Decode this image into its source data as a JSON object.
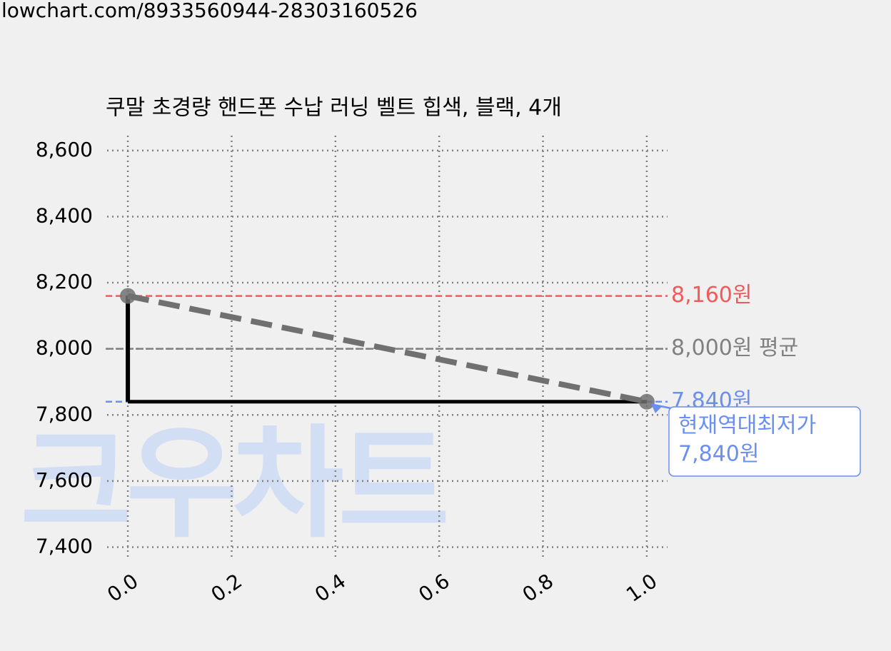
{
  "url": "lowchart.com/8933560944-28303160526",
  "watermark": "크우차트",
  "chart_data": {
    "type": "line",
    "title": "쿠말 초경량 핸드폰 수납 러닝 벨트 힙색, 블랙, 4개",
    "x": [
      0,
      1
    ],
    "series": [
      {
        "values": [
          8160,
          7840
        ],
        "color": "#000000",
        "style": "step"
      },
      {
        "values": [
          8160,
          7840
        ],
        "color": "#707070",
        "style": "dashed",
        "markers": true
      }
    ],
    "xlim": [
      -0.04,
      1.04
    ],
    "ylim": [
      7360,
      8645
    ],
    "xticks": [
      {
        "value": 0,
        "label": "0.0"
      },
      {
        "value": 0.2,
        "label": "0.2"
      },
      {
        "value": 0.4,
        "label": "0.4"
      },
      {
        "value": 0.6,
        "label": "0.6"
      },
      {
        "value": 0.8,
        "label": "0.8"
      },
      {
        "value": 1,
        "label": "1.0"
      }
    ],
    "yticks": [
      {
        "value": 7400,
        "label": "7,400"
      },
      {
        "value": 7600,
        "label": "7,600"
      },
      {
        "value": 7800,
        "label": "7,800"
      },
      {
        "value": 8000,
        "label": "8,000"
      },
      {
        "value": 8200,
        "label": "8,200"
      },
      {
        "value": 8400,
        "label": "8,400"
      },
      {
        "value": 8600,
        "label": "8,600"
      }
    ],
    "grid": true,
    "reference_lines": [
      {
        "value": 8160,
        "label": "8,160원",
        "color": "#f25a5a"
      },
      {
        "value": 8000,
        "label": "8,000원 평균",
        "color": "#808080"
      },
      {
        "value": 7840,
        "label": "7,840원",
        "color": "#6a8ff0"
      }
    ],
    "annotation": {
      "lines": [
        "현재역대최저가",
        "7,840원"
      ],
      "x": 1,
      "value": 7840,
      "color": "#6a8ff0"
    }
  }
}
